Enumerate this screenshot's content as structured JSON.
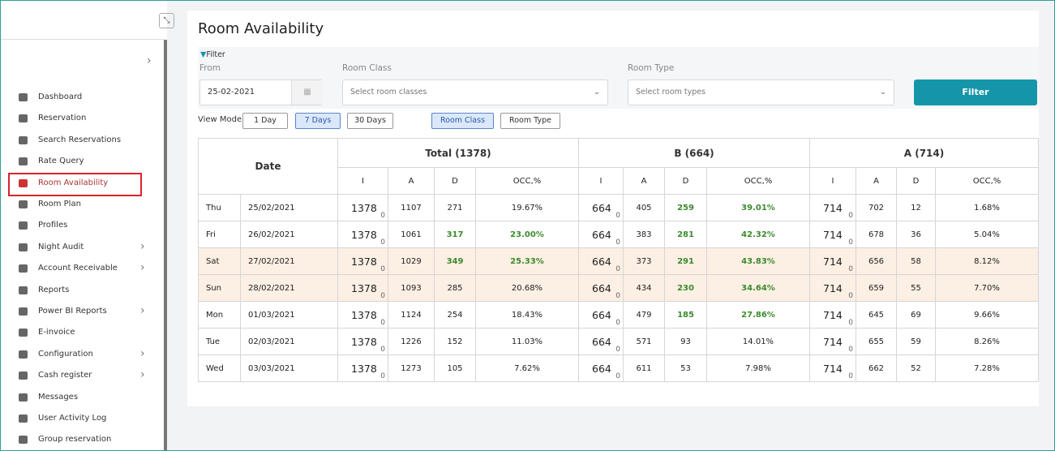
{
  "sidebar": {
    "items": [
      {
        "label": "Dashboard"
      },
      {
        "label": "Reservation"
      },
      {
        "label": "Search Reservations"
      },
      {
        "label": "Rate Query"
      },
      {
        "label": "Room Availability",
        "active": true
      },
      {
        "label": "Room Plan"
      },
      {
        "label": "Profiles"
      },
      {
        "label": "Night Audit",
        "submenu": true
      },
      {
        "label": "Account Receivable",
        "submenu": true
      },
      {
        "label": "Reports"
      },
      {
        "label": "Power BI Reports",
        "submenu": true
      },
      {
        "label": "E-invoice"
      },
      {
        "label": "Configuration",
        "submenu": true
      },
      {
        "label": "Cash register",
        "submenu": true
      },
      {
        "label": "Messages"
      },
      {
        "label": "User Activity Log"
      },
      {
        "label": "Group reservation"
      }
    ]
  },
  "page": {
    "title": "Room Availability"
  },
  "filter": {
    "label": "Filter",
    "from_label": "From",
    "from_value": "25-02-2021",
    "room_class_label": "Room Class",
    "room_class_placeholder": "Select room classes",
    "room_type_label": "Room Type",
    "room_type_placeholder": "Select room types",
    "button": "Filter"
  },
  "view": {
    "label": "View Mode",
    "modes": [
      {
        "label": "1 Day"
      },
      {
        "label": "7 Days",
        "active": true
      },
      {
        "label": "30 Days"
      }
    ],
    "groupings": [
      {
        "label": "Room Class",
        "active": true
      },
      {
        "label": "Room Type"
      }
    ]
  },
  "table": {
    "date_header": "Date",
    "groups": [
      "Total (1378)",
      "B (664)",
      "A (714)"
    ],
    "columns": [
      "I",
      "A",
      "D",
      "OCC,%"
    ],
    "rows": [
      {
        "day": "Thu",
        "date": "25/02/2021",
        "groups": [
          {
            "i": "1378",
            "sub": "0",
            "a": "1107",
            "d": "271",
            "occ": "19.67%"
          },
          {
            "i": "664",
            "sub": "0",
            "a": "405",
            "d": "259",
            "occ": "39.01%",
            "green": true
          },
          {
            "i": "714",
            "sub": "0",
            "a": "702",
            "d": "12",
            "occ": "1.68%"
          }
        ]
      },
      {
        "day": "Fri",
        "date": "26/02/2021",
        "groups": [
          {
            "i": "1378",
            "sub": "0",
            "a": "1061",
            "d": "317",
            "occ": "23.00%",
            "green": true
          },
          {
            "i": "664",
            "sub": "0",
            "a": "383",
            "d": "281",
            "occ": "42.32%",
            "green": true
          },
          {
            "i": "714",
            "sub": "0",
            "a": "678",
            "d": "36",
            "occ": "5.04%"
          }
        ]
      },
      {
        "day": "Sat",
        "date": "27/02/2021",
        "weekend": true,
        "groups": [
          {
            "i": "1378",
            "sub": "0",
            "a": "1029",
            "d": "349",
            "occ": "25.33%",
            "green": true
          },
          {
            "i": "664",
            "sub": "0",
            "a": "373",
            "d": "291",
            "occ": "43.83%",
            "green": true
          },
          {
            "i": "714",
            "sub": "0",
            "a": "656",
            "d": "58",
            "occ": "8.12%"
          }
        ]
      },
      {
        "day": "Sun",
        "date": "28/02/2021",
        "weekend": true,
        "groups": [
          {
            "i": "1378",
            "sub": "0",
            "a": "1093",
            "d": "285",
            "occ": "20.68%"
          },
          {
            "i": "664",
            "sub": "0",
            "a": "434",
            "d": "230",
            "occ": "34.64%",
            "green": true
          },
          {
            "i": "714",
            "sub": "0",
            "a": "659",
            "d": "55",
            "occ": "7.70%"
          }
        ]
      },
      {
        "day": "Mon",
        "date": "01/03/2021",
        "groups": [
          {
            "i": "1378",
            "sub": "0",
            "a": "1124",
            "d": "254",
            "occ": "18.43%"
          },
          {
            "i": "664",
            "sub": "0",
            "a": "479",
            "d": "185",
            "occ": "27.86%",
            "green": true
          },
          {
            "i": "714",
            "sub": "0",
            "a": "645",
            "d": "69",
            "occ": "9.66%"
          }
        ]
      },
      {
        "day": "Tue",
        "date": "02/03/2021",
        "groups": [
          {
            "i": "1378",
            "sub": "0",
            "a": "1226",
            "d": "152",
            "occ": "11.03%"
          },
          {
            "i": "664",
            "sub": "0",
            "a": "571",
            "d": "93",
            "occ": "14.01%"
          },
          {
            "i": "714",
            "sub": "0",
            "a": "655",
            "d": "59",
            "occ": "8.26%"
          }
        ]
      },
      {
        "day": "Wed",
        "date": "03/03/2021",
        "groups": [
          {
            "i": "1378",
            "sub": "0",
            "a": "1273",
            "d": "105",
            "occ": "7.62%"
          },
          {
            "i": "664",
            "sub": "0",
            "a": "611",
            "d": "53",
            "occ": "7.98%"
          },
          {
            "i": "714",
            "sub": "0",
            "a": "662",
            "d": "52",
            "occ": "7.28%"
          }
        ]
      }
    ]
  }
}
